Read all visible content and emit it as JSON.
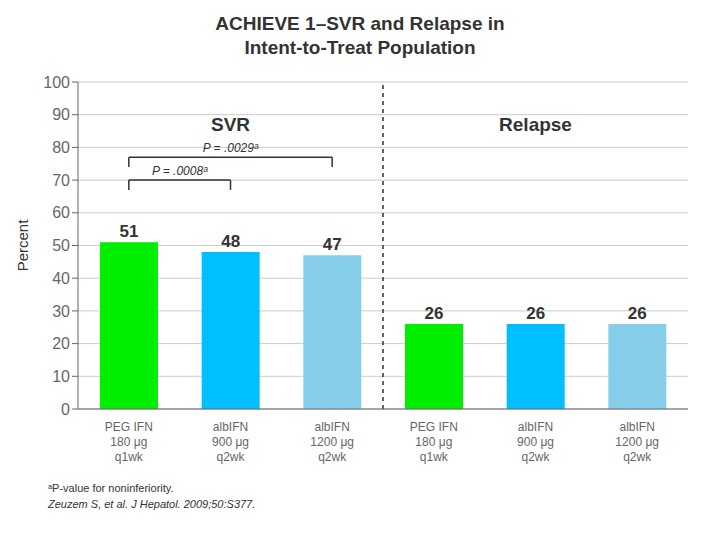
{
  "chart_data": {
    "type": "bar",
    "title": "ACHIEVE 1–SVR and Relapse in\nIntent-to-Treat Population",
    "categories": [
      "PEG IFN\n180 μg\nq1wk",
      "albIFN\n900 μg\nq2wk",
      "albIFN\n1200 μg\nq2wk",
      "PEG IFN\n180 μg\nq1wk",
      "albIFN\n900 μg\nq2wk",
      "albIFN\n1200 μg\nq2wk"
    ],
    "values": [
      51,
      48,
      47,
      26,
      26,
      26
    ],
    "colors": [
      "#00ee00",
      "#00bfff",
      "#87ceeb",
      "#00ee00",
      "#00bfff",
      "#87ceeb"
    ],
    "ylabel": "Percent",
    "ylim": [
      0,
      100
    ],
    "yticks": [
      0,
      10,
      20,
      30,
      40,
      50,
      60,
      70,
      80,
      90,
      100
    ],
    "grid": true,
    "data_labels": true,
    "annotations": [
      "SVR",
      "Relapse",
      "P = .0029ᵃ",
      "P = .0008ᵃ",
      "ᵃP-value for noninferiority.",
      "Zeuzem S, et al. J Hepatol. 2009;50:S377."
    ]
  }
}
